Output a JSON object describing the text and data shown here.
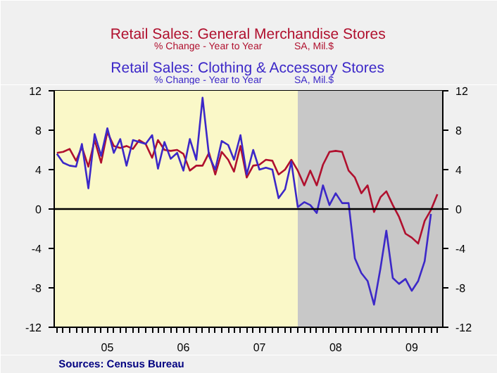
{
  "chart_data": {
    "type": "line",
    "x": [
      "2004-11",
      "2004-12",
      "2005-01",
      "2005-02",
      "2005-03",
      "2005-04",
      "2005-05",
      "2005-06",
      "2005-07",
      "2005-08",
      "2005-09",
      "2005-10",
      "2005-11",
      "2005-12",
      "2006-01",
      "2006-02",
      "2006-03",
      "2006-04",
      "2006-05",
      "2006-06",
      "2006-07",
      "2006-08",
      "2006-09",
      "2006-10",
      "2006-11",
      "2006-12",
      "2007-01",
      "2007-02",
      "2007-03",
      "2007-04",
      "2007-05",
      "2007-06",
      "2007-07",
      "2007-08",
      "2007-09",
      "2007-10",
      "2007-11",
      "2007-12",
      "2008-01",
      "2008-02",
      "2008-03",
      "2008-04",
      "2008-05",
      "2008-06",
      "2008-07",
      "2008-08",
      "2008-09",
      "2008-10",
      "2008-11",
      "2008-12",
      "2009-01",
      "2009-02",
      "2009-03",
      "2009-04",
      "2009-05",
      "2009-06",
      "2009-07",
      "2009-08",
      "2009-09",
      "2009-10",
      "2009-11"
    ],
    "series": [
      {
        "name": "Retail Sales: General Merchandise Stores",
        "color": "#b0102e",
        "values": [
          5.7,
          5.8,
          6.1,
          4.9,
          6.3,
          4.3,
          7.0,
          4.7,
          7.8,
          6.4,
          6.2,
          6.4,
          6.1,
          7.0,
          6.6,
          5.2,
          7.0,
          6.0,
          5.9,
          6.0,
          5.6,
          3.9,
          4.4,
          4.4,
          5.7,
          3.5,
          5.8,
          5.0,
          3.8,
          6.4,
          3.2,
          4.4,
          4.5,
          5.0,
          4.9,
          3.5,
          4.0,
          5.0,
          3.9,
          2.4,
          3.9,
          2.4,
          4.5,
          5.8,
          5.9,
          5.8,
          3.9,
          3.2,
          1.6,
          2.4,
          -0.3,
          1.2,
          1.8,
          0.4,
          -0.8,
          -2.5,
          -2.9,
          -3.5,
          -1.2,
          -0.1,
          1.5
        ]
      },
      {
        "name": "Retail Sales: Clothing & Accessory Stores",
        "color": "#3c28c8",
        "values": [
          5.6,
          4.7,
          4.4,
          4.3,
          6.6,
          2.1,
          7.6,
          5.4,
          8.2,
          5.7,
          7.1,
          4.4,
          7.0,
          6.8,
          6.6,
          7.5,
          4.1,
          6.8,
          5.1,
          5.7,
          3.9,
          7.1,
          5.0,
          11.3,
          5.4,
          4.0,
          6.9,
          6.5,
          5.0,
          7.5,
          3.5,
          6.0,
          4.0,
          4.2,
          4.0,
          1.1,
          2.0,
          4.8,
          0.2,
          0.7,
          0.4,
          -0.4,
          2.4,
          0.4,
          1.6,
          0.6,
          0.6,
          -5.0,
          -6.5,
          -7.3,
          -9.7,
          -6.0,
          -2.2,
          -7.0,
          -7.6,
          -7.1,
          -8.3,
          -7.3,
          -5.3,
          -0.5,
          null
        ]
      }
    ],
    "xlim": [
      "2004-10-19",
      "2009-11-27"
    ],
    "xticks": [
      {
        "value": "2005-07-01",
        "label": "05"
      },
      {
        "value": "2006-07-01",
        "label": "06"
      },
      {
        "value": "2007-07-01",
        "label": "07"
      },
      {
        "value": "2008-07-01",
        "label": "08"
      },
      {
        "value": "2009-07-01",
        "label": "09"
      }
    ],
    "ylim": [
      -12,
      12
    ],
    "yticks": [
      -12,
      -8,
      -4,
      0,
      4,
      8,
      12
    ],
    "y2lim": [
      -12,
      12
    ],
    "y2ticks": [
      -12,
      -8,
      -4,
      0,
      4,
      8,
      12
    ],
    "bands": [
      {
        "axis": "x",
        "from": "2004-10-19",
        "to": "2008-01-01",
        "color": "#faf8c8"
      },
      {
        "axis": "x",
        "from": "2008-01-01",
        "to": "2009-11-27",
        "color": "#c8c8c8"
      }
    ],
    "ref_lines": [
      {
        "axis": "y",
        "value": 0,
        "color": "#000000"
      }
    ],
    "annotations": [
      "% Change - Year to Year",
      "SA, Mil.$",
      "% Change - Year to Year",
      "SA, Mil.$",
      "Sources: Census Bureau"
    ],
    "marker": "none",
    "line_style": "solid"
  }
}
